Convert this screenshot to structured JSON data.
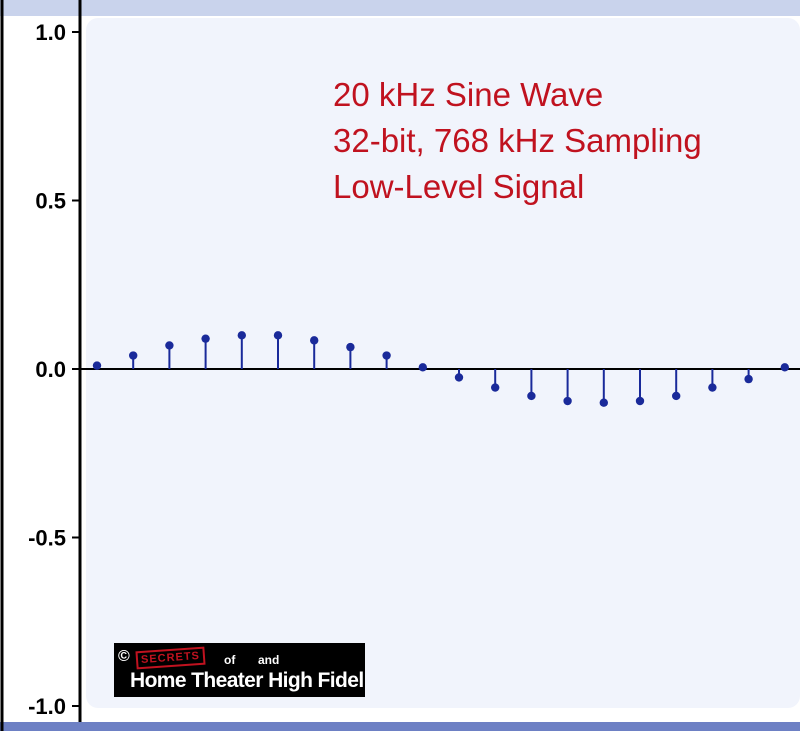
{
  "chart_data": {
    "type": "stem",
    "title": "",
    "xlabel": "",
    "ylabel": "",
    "ylim": [
      -1.0,
      1.0
    ],
    "yticks": [
      "1.0",
      "0.5",
      "0.0",
      "-0.5",
      "-1.0"
    ],
    "ytick_values": [
      1.0,
      0.5,
      0.0,
      -0.5,
      -1.0
    ],
    "grid": false,
    "series": [
      {
        "color": "#1a2a9a",
        "values": [
          0.01,
          0.04,
          0.07,
          0.09,
          0.1,
          0.1,
          0.085,
          0.065,
          0.04,
          0.005,
          -0.025,
          -0.055,
          -0.08,
          -0.095,
          -0.1,
          -0.095,
          -0.08,
          -0.055,
          -0.03,
          0.005
        ]
      }
    ],
    "annotation": {
      "color": "#c0121f",
      "lines": [
        "20 kHz Sine Wave",
        "32-bit, 768 kHz Sampling",
        "Low-Level Signal"
      ]
    }
  },
  "logo": {
    "copyright": "©",
    "stamp": "SECRETS",
    "of": "of",
    "and": "and",
    "text": "Home Theater High Fidelity"
  }
}
